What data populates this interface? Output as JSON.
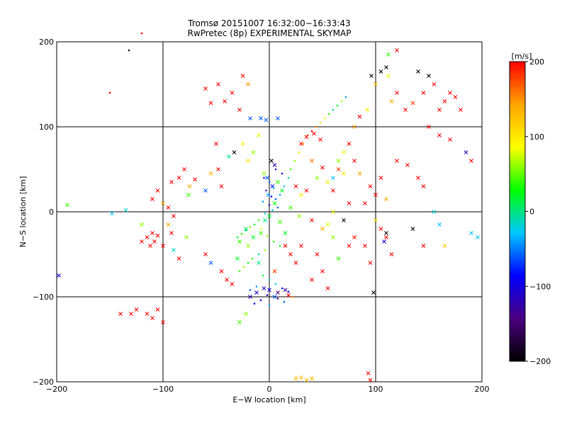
{
  "chart_data": {
    "type": "scatter",
    "title": "Tromsø 20151007 16:32:00−16:33:43",
    "subtitle": "RwPretec (8p) EXPERIMENTAL SKYMAP",
    "xlabel": "E−W location [km]",
    "ylabel": "N−S location [km]",
    "xlim": [
      -200,
      200
    ],
    "ylim": [
      -200,
      200
    ],
    "x_ticks": [
      -200,
      -100,
      0,
      100,
      200
    ],
    "y_ticks": [
      -200,
      -100,
      0,
      100,
      200
    ],
    "x_tick_labels": [
      "−200",
      "−100",
      "0",
      "100",
      "200"
    ],
    "y_tick_labels": [
      "−200",
      "−100",
      "0",
      "100",
      "200"
    ],
    "grid": true,
    "colorbar": {
      "label": "[m/s]",
      "range": [
        -200,
        200
      ],
      "ticks": [
        200,
        100,
        0,
        -100,
        -200
      ],
      "tick_labels": [
        "200",
        "100",
        "0",
        "−100",
        "−200"
      ],
      "colors": [
        "#000000",
        "#4b0080",
        "#0000ff",
        "#00c8ff",
        "#00ff00",
        "#ffff00",
        "#ffa500",
        "#ff0000"
      ]
    },
    "marker_types": [
      "x",
      "dot"
    ],
    "points": [
      [
        -150,
        140,
        200,
        "dot"
      ],
      [
        -132,
        190,
        -200,
        "dot"
      ],
      [
        -120,
        210,
        200,
        "dot"
      ],
      [
        -55,
        128,
        200,
        "x"
      ],
      [
        -48,
        150,
        200,
        "x"
      ],
      [
        -42,
        130,
        200,
        "x"
      ],
      [
        -35,
        140,
        200,
        "x"
      ],
      [
        -28,
        120,
        200,
        "x"
      ],
      [
        -60,
        145,
        200,
        "x"
      ],
      [
        -20,
        150,
        150,
        "x"
      ],
      [
        -25,
        160,
        200,
        "x"
      ],
      [
        -38,
        65,
        0,
        "x"
      ],
      [
        -50,
        80,
        200,
        "x"
      ],
      [
        -33,
        70,
        -200,
        "x"
      ],
      [
        -20,
        60,
        100,
        "x"
      ],
      [
        -15,
        70,
        60,
        "x"
      ],
      [
        -5,
        45,
        60,
        "x"
      ],
      [
        -10,
        90,
        80,
        "x"
      ],
      [
        -25,
        80,
        100,
        "x"
      ],
      [
        -18,
        110,
        -60,
        "x"
      ],
      [
        -8,
        110,
        -60,
        "x"
      ],
      [
        -3,
        108,
        -60,
        "x"
      ],
      [
        8,
        110,
        -60,
        "x"
      ],
      [
        2,
        60,
        -200,
        "x"
      ],
      [
        5,
        55,
        -120,
        "x"
      ],
      [
        -2,
        40,
        -60,
        "x"
      ],
      [
        3,
        30,
        -80,
        "x"
      ],
      [
        8,
        35,
        40,
        "x"
      ],
      [
        12,
        25,
        20,
        "x"
      ],
      [
        -1,
        20,
        -40,
        "x"
      ],
      [
        5,
        10,
        30,
        "x"
      ],
      [
        0,
        -5,
        20,
        "x"
      ],
      [
        -4,
        -10,
        0,
        "x"
      ],
      [
        10,
        -12,
        40,
        "x"
      ],
      [
        15,
        -25,
        20,
        "x"
      ],
      [
        -8,
        -25,
        40,
        "x"
      ],
      [
        -15,
        -30,
        20,
        "x"
      ],
      [
        -22,
        -20,
        10,
        "x"
      ],
      [
        -28,
        -35,
        40,
        "x"
      ],
      [
        -20,
        -40,
        60,
        "x"
      ],
      [
        -30,
        -55,
        20,
        "x"
      ],
      [
        -10,
        -60,
        0,
        "x"
      ],
      [
        5,
        -70,
        180,
        "x"
      ],
      [
        -5,
        -90,
        -120,
        "x"
      ],
      [
        0,
        -92,
        -100,
        "x"
      ],
      [
        8,
        -95,
        -150,
        "x"
      ],
      [
        15,
        -92,
        -130,
        "x"
      ],
      [
        18,
        -98,
        200,
        "x"
      ],
      [
        -12,
        -95,
        -110,
        "x"
      ],
      [
        -18,
        -100,
        -120,
        "x"
      ],
      [
        5,
        -100,
        -60,
        "x"
      ],
      [
        -22,
        -120,
        60,
        "x"
      ],
      [
        -28,
        -130,
        40,
        "x"
      ],
      [
        30,
        80,
        200,
        "x"
      ],
      [
        35,
        88,
        200,
        "x"
      ],
      [
        42,
        92,
        200,
        "x"
      ],
      [
        48,
        85,
        200,
        "x"
      ],
      [
        40,
        60,
        160,
        "x"
      ],
      [
        50,
        52,
        200,
        "x"
      ],
      [
        45,
        40,
        60,
        "x"
      ],
      [
        55,
        35,
        80,
        "x"
      ],
      [
        60,
        25,
        200,
        "x"
      ],
      [
        65,
        50,
        180,
        "x"
      ],
      [
        70,
        70,
        100,
        "x"
      ],
      [
        75,
        80,
        200,
        "x"
      ],
      [
        80,
        100,
        150,
        "x"
      ],
      [
        85,
        112,
        200,
        "x"
      ],
      [
        92,
        120,
        100,
        "x"
      ],
      [
        100,
        150,
        120,
        "x"
      ],
      [
        105,
        165,
        -200,
        "x"
      ],
      [
        115,
        130,
        140,
        "x"
      ],
      [
        120,
        140,
        200,
        "x"
      ],
      [
        128,
        120,
        200,
        "x"
      ],
      [
        135,
        128,
        180,
        "x"
      ],
      [
        110,
        170,
        -200,
        "x"
      ],
      [
        96,
        160,
        -200,
        "x"
      ],
      [
        112,
        160,
        80,
        "x"
      ],
      [
        120,
        190,
        200,
        "x"
      ],
      [
        112,
        185,
        40,
        "x"
      ],
      [
        140,
        165,
        -200,
        "x"
      ],
      [
        150,
        160,
        -200,
        "x"
      ],
      [
        145,
        140,
        200,
        "x"
      ],
      [
        155,
        150,
        200,
        "x"
      ],
      [
        160,
        120,
        200,
        "x"
      ],
      [
        165,
        130,
        200,
        "x"
      ],
      [
        170,
        140,
        200,
        "x"
      ],
      [
        175,
        135,
        200,
        "x"
      ],
      [
        180,
        120,
        200,
        "x"
      ],
      [
        150,
        100,
        200,
        "x"
      ],
      [
        160,
        90,
        200,
        "x"
      ],
      [
        170,
        85,
        200,
        "x"
      ],
      [
        185,
        70,
        -120,
        "x"
      ],
      [
        190,
        60,
        200,
        "x"
      ],
      [
        120,
        60,
        200,
        "x"
      ],
      [
        130,
        55,
        200,
        "x"
      ],
      [
        140,
        40,
        200,
        "x"
      ],
      [
        145,
        30,
        200,
        "x"
      ],
      [
        155,
        0,
        -20,
        "x"
      ],
      [
        160,
        -15,
        -30,
        "x"
      ],
      [
        135,
        -20,
        -200,
        "x"
      ],
      [
        145,
        -40,
        200,
        "x"
      ],
      [
        165,
        -40,
        120,
        "x"
      ],
      [
        190,
        -25,
        -30,
        "x"
      ],
      [
        196,
        -30,
        -30,
        "x"
      ],
      [
        100,
        -10,
        100,
        "x"
      ],
      [
        105,
        -20,
        200,
        "x"
      ],
      [
        110,
        -30,
        200,
        "x"
      ],
      [
        115,
        -50,
        200,
        "x"
      ],
      [
        95,
        -60,
        200,
        "x"
      ],
      [
        90,
        -40,
        200,
        "x"
      ],
      [
        110,
        -25,
        -200,
        "x"
      ],
      [
        108,
        -35,
        -100,
        "x"
      ],
      [
        80,
        -30,
        200,
        "x"
      ],
      [
        75,
        -40,
        200,
        "x"
      ],
      [
        60,
        -30,
        60,
        "x"
      ],
      [
        65,
        -55,
        40,
        "x"
      ],
      [
        45,
        -50,
        200,
        "x"
      ],
      [
        50,
        -70,
        200,
        "x"
      ],
      [
        40,
        -80,
        200,
        "x"
      ],
      [
        55,
        -90,
        200,
        "x"
      ],
      [
        98,
        -95,
        -200,
        "x"
      ],
      [
        93,
        -190,
        200,
        "x"
      ],
      [
        95,
        -198,
        200,
        "x"
      ],
      [
        30,
        -195,
        130,
        "x"
      ],
      [
        35,
        -198,
        130,
        "x"
      ],
      [
        40,
        -196,
        130,
        "x"
      ],
      [
        25,
        -196,
        130,
        "x"
      ],
      [
        -110,
        -25,
        200,
        "x"
      ],
      [
        -115,
        -30,
        200,
        "x"
      ],
      [
        -108,
        -35,
        200,
        "x"
      ],
      [
        -112,
        -40,
        200,
        "x"
      ],
      [
        -120,
        -35,
        200,
        "x"
      ],
      [
        -105,
        -28,
        200,
        "x"
      ],
      [
        -100,
        -40,
        200,
        "x"
      ],
      [
        -125,
        -115,
        200,
        "x"
      ],
      [
        -130,
        -120,
        200,
        "x"
      ],
      [
        -115,
        -120,
        200,
        "x"
      ],
      [
        -140,
        -120,
        200,
        "x"
      ],
      [
        -110,
        -125,
        200,
        "x"
      ],
      [
        -105,
        -115,
        200,
        "x"
      ],
      [
        -100,
        -130,
        200,
        "x"
      ],
      [
        -190,
        8,
        40,
        "x"
      ],
      [
        -148,
        -2,
        -30,
        "x"
      ],
      [
        -135,
        2,
        -20,
        "x"
      ],
      [
        -198,
        -75,
        -100,
        "x"
      ],
      [
        -90,
        -45,
        -20,
        "x"
      ],
      [
        -85,
        -55,
        200,
        "x"
      ],
      [
        -60,
        -50,
        200,
        "x"
      ],
      [
        -55,
        -60,
        -60,
        "x"
      ],
      [
        -45,
        -70,
        200,
        "x"
      ],
      [
        -40,
        -80,
        200,
        "x"
      ],
      [
        -35,
        -85,
        200,
        "x"
      ],
      [
        -92,
        35,
        200,
        "x"
      ],
      [
        -85,
        40,
        200,
        "x"
      ],
      [
        -80,
        50,
        200,
        "x"
      ],
      [
        -75,
        30,
        140,
        "x"
      ],
      [
        -70,
        38,
        200,
        "x"
      ],
      [
        -60,
        25,
        -60,
        "x"
      ],
      [
        -55,
        45,
        140,
        "x"
      ],
      [
        -48,
        50,
        200,
        "x"
      ],
      [
        -45,
        30,
        200,
        "x"
      ],
      [
        -110,
        15,
        200,
        "x"
      ],
      [
        -105,
        25,
        200,
        "x"
      ],
      [
        -100,
        10,
        140,
        "x"
      ],
      [
        -95,
        5,
        200,
        "x"
      ],
      [
        -90,
        -5,
        200,
        "x"
      ],
      [
        -120,
        -15,
        60,
        "x"
      ],
      [
        -95,
        -15,
        140,
        "x"
      ],
      [
        -92,
        -25,
        200,
        "x"
      ],
      [
        -78,
        -30,
        60,
        "x"
      ],
      [
        -76,
        20,
        40,
        "x"
      ],
      [
        30,
        20,
        100,
        "x"
      ],
      [
        35,
        25,
        200,
        "x"
      ],
      [
        25,
        30,
        200,
        "x"
      ],
      [
        20,
        5,
        40,
        "x"
      ],
      [
        28,
        -5,
        60,
        "x"
      ],
      [
        40,
        -10,
        200,
        "x"
      ],
      [
        50,
        -20,
        140,
        "x"
      ],
      [
        55,
        -15,
        80,
        "x"
      ],
      [
        30,
        -40,
        200,
        "x"
      ],
      [
        20,
        -50,
        200,
        "x"
      ],
      [
        15,
        -40,
        200,
        "x"
      ],
      [
        25,
        -60,
        200,
        "x"
      ],
      [
        60,
        0,
        80,
        "x"
      ],
      [
        70,
        -10,
        -200,
        "x"
      ],
      [
        75,
        10,
        200,
        "x"
      ],
      [
        60,
        40,
        -30,
        "x"
      ],
      [
        65,
        60,
        60,
        "x"
      ],
      [
        70,
        45,
        100,
        "x"
      ],
      [
        80,
        60,
        200,
        "x"
      ],
      [
        85,
        45,
        140,
        "x"
      ],
      [
        95,
        30,
        200,
        "x"
      ],
      [
        100,
        20,
        200,
        "x"
      ],
      [
        110,
        15,
        140,
        "x"
      ],
      [
        105,
        40,
        200,
        "x"
      ],
      [
        90,
        10,
        200,
        "x"
      ],
      [
        -5,
        40,
        -100,
        "dot"
      ],
      [
        0,
        35,
        -60,
        "dot"
      ],
      [
        4,
        28,
        -40,
        "dot"
      ],
      [
        -3,
        25,
        -120,
        "dot"
      ],
      [
        2,
        18,
        -80,
        "dot"
      ],
      [
        6,
        15,
        -60,
        "dot"
      ],
      [
        -6,
        12,
        -40,
        "dot"
      ],
      [
        0,
        8,
        -100,
        "dot"
      ],
      [
        3,
        2,
        -30,
        "dot"
      ],
      [
        -4,
        -2,
        -20,
        "dot"
      ],
      [
        8,
        5,
        -60,
        "dot"
      ],
      [
        10,
        20,
        -40,
        "dot"
      ],
      [
        14,
        30,
        -20,
        "dot"
      ],
      [
        18,
        40,
        0,
        "dot"
      ],
      [
        12,
        45,
        -80,
        "dot"
      ],
      [
        6,
        50,
        -120,
        "dot"
      ],
      [
        20,
        50,
        40,
        "dot"
      ],
      [
        24,
        60,
        60,
        "dot"
      ],
      [
        28,
        70,
        100,
        "dot"
      ],
      [
        32,
        80,
        140,
        "dot"
      ],
      [
        36,
        90,
        180,
        "dot"
      ],
      [
        40,
        95,
        200,
        "dot"
      ],
      [
        44,
        100,
        160,
        "dot"
      ],
      [
        48,
        105,
        120,
        "dot"
      ],
      [
        52,
        110,
        80,
        "dot"
      ],
      [
        56,
        115,
        40,
        "dot"
      ],
      [
        60,
        120,
        0,
        "dot"
      ],
      [
        64,
        125,
        20,
        "dot"
      ],
      [
        68,
        130,
        60,
        "dot"
      ],
      [
        72,
        135,
        -40,
        "dot"
      ],
      [
        -10,
        -10,
        40,
        "dot"
      ],
      [
        -14,
        -15,
        20,
        "dot"
      ],
      [
        -18,
        -18,
        60,
        "dot"
      ],
      [
        -22,
        -22,
        0,
        "dot"
      ],
      [
        -26,
        -26,
        40,
        "dot"
      ],
      [
        -30,
        -30,
        20,
        "dot"
      ],
      [
        -8,
        -20,
        80,
        "dot"
      ],
      [
        -2,
        -28,
        60,
        "dot"
      ],
      [
        4,
        -35,
        40,
        "dot"
      ],
      [
        10,
        -40,
        20,
        "dot"
      ],
      [
        -4,
        -45,
        60,
        "dot"
      ],
      [
        -10,
        -50,
        0,
        "dot"
      ],
      [
        -16,
        -55,
        40,
        "dot"
      ],
      [
        -20,
        -60,
        20,
        "dot"
      ],
      [
        -24,
        -65,
        60,
        "dot"
      ],
      [
        -28,
        -70,
        40,
        "dot"
      ],
      [
        -6,
        -75,
        20,
        "dot"
      ],
      [
        0,
        -80,
        0,
        "dot"
      ],
      [
        6,
        -85,
        -20,
        "dot"
      ],
      [
        -12,
        -88,
        -40,
        "dot"
      ],
      [
        -18,
        -92,
        -60,
        "dot"
      ],
      [
        12,
        -90,
        -80,
        "dot"
      ],
      [
        18,
        -94,
        -100,
        "dot"
      ],
      [
        -2,
        -98,
        -120,
        "dot"
      ],
      [
        8,
        -102,
        -140,
        "dot"
      ],
      [
        -8,
        -104,
        -100,
        "dot"
      ],
      [
        14,
        -106,
        -60,
        "dot"
      ],
      [
        -14,
        -108,
        -80,
        "dot"
      ],
      [
        0,
        -110,
        -40,
        "dot"
      ],
      [
        22,
        -100,
        160,
        "dot"
      ]
    ]
  }
}
